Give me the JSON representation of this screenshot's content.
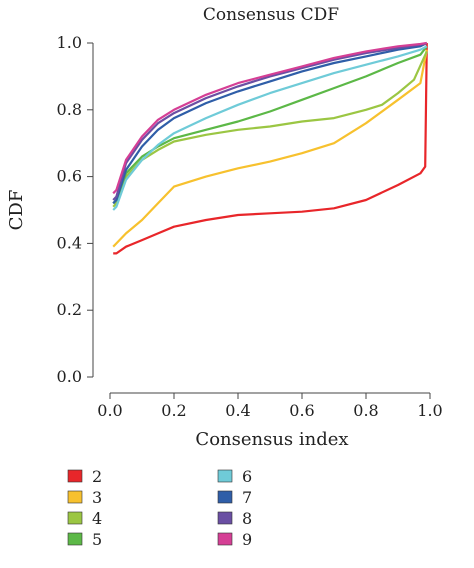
{
  "chart_data": {
    "type": "line",
    "title": "Consensus CDF",
    "xlabel": "Consensus index",
    "ylabel": "CDF",
    "xlim": [
      0,
      1
    ],
    "ylim": [
      0,
      1
    ],
    "x_ticks": [
      "0.0",
      "0.2",
      "0.4",
      "0.6",
      "0.8",
      "1.0"
    ],
    "y_ticks": [
      "0.0",
      "0.2",
      "0.4",
      "0.6",
      "0.8",
      "1.0"
    ],
    "grid": false,
    "legend_position": "bottom",
    "series": [
      {
        "name": "2",
        "color": "#e8262a",
        "points": [
          [
            0.01,
            0.37
          ],
          [
            0.02,
            0.37
          ],
          [
            0.05,
            0.39
          ],
          [
            0.1,
            0.41
          ],
          [
            0.15,
            0.43
          ],
          [
            0.2,
            0.45
          ],
          [
            0.3,
            0.47
          ],
          [
            0.4,
            0.485
          ],
          [
            0.5,
            0.49
          ],
          [
            0.6,
            0.495
          ],
          [
            0.7,
            0.505
          ],
          [
            0.8,
            0.53
          ],
          [
            0.9,
            0.575
          ],
          [
            0.97,
            0.61
          ],
          [
            0.985,
            0.63
          ],
          [
            0.99,
            1.0
          ]
        ]
      },
      {
        "name": "3",
        "color": "#f7c12e",
        "points": [
          [
            0.01,
            0.39
          ],
          [
            0.02,
            0.4
          ],
          [
            0.05,
            0.43
          ],
          [
            0.1,
            0.47
          ],
          [
            0.15,
            0.52
          ],
          [
            0.2,
            0.57
          ],
          [
            0.3,
            0.6
          ],
          [
            0.4,
            0.625
          ],
          [
            0.5,
            0.645
          ],
          [
            0.6,
            0.67
          ],
          [
            0.7,
            0.7
          ],
          [
            0.75,
            0.73
          ],
          [
            0.8,
            0.76
          ],
          [
            0.9,
            0.83
          ],
          [
            0.97,
            0.88
          ],
          [
            0.99,
            0.98
          ]
        ]
      },
      {
        "name": "4",
        "color": "#9bc643",
        "points": [
          [
            0.01,
            0.51
          ],
          [
            0.02,
            0.52
          ],
          [
            0.05,
            0.6
          ],
          [
            0.1,
            0.65
          ],
          [
            0.15,
            0.68
          ],
          [
            0.2,
            0.705
          ],
          [
            0.3,
            0.725
          ],
          [
            0.4,
            0.74
          ],
          [
            0.5,
            0.75
          ],
          [
            0.6,
            0.765
          ],
          [
            0.7,
            0.775
          ],
          [
            0.8,
            0.8
          ],
          [
            0.85,
            0.815
          ],
          [
            0.9,
            0.85
          ],
          [
            0.95,
            0.89
          ],
          [
            0.99,
            0.975
          ]
        ]
      },
      {
        "name": "5",
        "color": "#5cb847",
        "points": [
          [
            0.01,
            0.52
          ],
          [
            0.02,
            0.53
          ],
          [
            0.05,
            0.61
          ],
          [
            0.1,
            0.66
          ],
          [
            0.15,
            0.69
          ],
          [
            0.2,
            0.715
          ],
          [
            0.3,
            0.74
          ],
          [
            0.4,
            0.765
          ],
          [
            0.5,
            0.795
          ],
          [
            0.6,
            0.83
          ],
          [
            0.7,
            0.865
          ],
          [
            0.8,
            0.9
          ],
          [
            0.9,
            0.94
          ],
          [
            0.97,
            0.965
          ],
          [
            0.99,
            0.99
          ]
        ]
      },
      {
        "name": "6",
        "color": "#6fcbd8",
        "points": [
          [
            0.01,
            0.5
          ],
          [
            0.02,
            0.51
          ],
          [
            0.05,
            0.59
          ],
          [
            0.1,
            0.65
          ],
          [
            0.15,
            0.695
          ],
          [
            0.2,
            0.73
          ],
          [
            0.3,
            0.775
          ],
          [
            0.4,
            0.815
          ],
          [
            0.5,
            0.85
          ],
          [
            0.6,
            0.88
          ],
          [
            0.7,
            0.91
          ],
          [
            0.8,
            0.935
          ],
          [
            0.9,
            0.96
          ],
          [
            0.97,
            0.98
          ],
          [
            0.99,
            0.99
          ]
        ]
      },
      {
        "name": "7",
        "color": "#2f5ea8",
        "points": [
          [
            0.01,
            0.52
          ],
          [
            0.02,
            0.53
          ],
          [
            0.05,
            0.62
          ],
          [
            0.1,
            0.69
          ],
          [
            0.15,
            0.74
          ],
          [
            0.2,
            0.775
          ],
          [
            0.3,
            0.82
          ],
          [
            0.4,
            0.855
          ],
          [
            0.5,
            0.885
          ],
          [
            0.6,
            0.915
          ],
          [
            0.7,
            0.94
          ],
          [
            0.8,
            0.96
          ],
          [
            0.9,
            0.98
          ],
          [
            0.97,
            0.99
          ],
          [
            0.99,
            1.0
          ]
        ]
      },
      {
        "name": "8",
        "color": "#6a4fa3",
        "points": [
          [
            0.01,
            0.53
          ],
          [
            0.02,
            0.54
          ],
          [
            0.05,
            0.64
          ],
          [
            0.1,
            0.71
          ],
          [
            0.15,
            0.76
          ],
          [
            0.2,
            0.79
          ],
          [
            0.3,
            0.835
          ],
          [
            0.4,
            0.87
          ],
          [
            0.5,
            0.9
          ],
          [
            0.6,
            0.925
          ],
          [
            0.7,
            0.95
          ],
          [
            0.8,
            0.97
          ],
          [
            0.9,
            0.985
          ],
          [
            0.97,
            0.995
          ],
          [
            0.99,
            1.0
          ]
        ]
      },
      {
        "name": "9",
        "color": "#d53f95",
        "points": [
          [
            0.01,
            0.55
          ],
          [
            0.02,
            0.56
          ],
          [
            0.05,
            0.65
          ],
          [
            0.1,
            0.72
          ],
          [
            0.15,
            0.77
          ],
          [
            0.2,
            0.8
          ],
          [
            0.3,
            0.845
          ],
          [
            0.4,
            0.88
          ],
          [
            0.5,
            0.905
          ],
          [
            0.6,
            0.93
          ],
          [
            0.7,
            0.955
          ],
          [
            0.8,
            0.975
          ],
          [
            0.9,
            0.99
          ],
          [
            0.97,
            0.997
          ],
          [
            0.99,
            1.0
          ]
        ]
      }
    ]
  }
}
